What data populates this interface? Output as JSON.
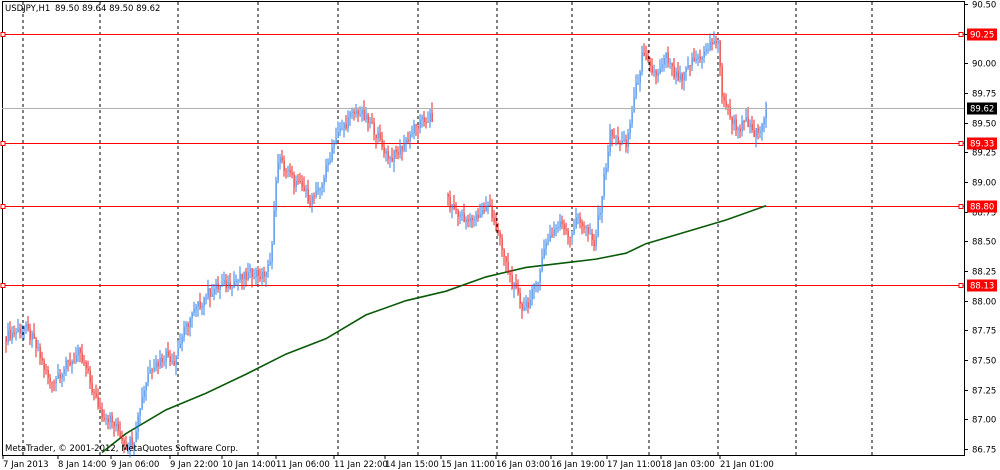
{
  "header": {
    "symbol": "USDJPY,H1",
    "ohlc": "89.50 89.64 89.50 89.62"
  },
  "copyright": "MetaTrader, © 2001-2012, MetaQuotes Software Corp.",
  "colors": {
    "background": "#ffffff",
    "up_candle": "#2f7fe8",
    "down_candle": "#e82020",
    "moving_average": "#0a5a0a",
    "level_line": "#ff0000",
    "grid": "#000000",
    "bid_line": "#b0b0b0"
  },
  "chart_data": {
    "type": "candlestick",
    "symbol": "USDJPY",
    "timeframe": "H1",
    "ylim": [
      86.7,
      90.5
    ],
    "yticks": [
      "90.50",
      "90.25",
      "90.00",
      "89.75",
      "89.50",
      "89.25",
      "89.00",
      "88.75",
      "88.50",
      "88.25",
      "88.00",
      "87.75",
      "87.50",
      "87.25",
      "87.00",
      "86.75"
    ],
    "xticks": [
      "7 Jan 2013",
      "8 Jan 14:00",
      "9 Jan 06:00",
      "9 Jan 22:00",
      "10 Jan 14:00",
      "11 Jan 06:00",
      "11 Jan 22:00",
      "14 Jan 15:00",
      "15 Jan 11:00",
      "16 Jan 03:00",
      "16 Jan 19:00",
      "17 Jan 11:00",
      "18 Jan 03:00",
      "21 Jan 01:00"
    ],
    "current_price": "89.62",
    "levels": [
      "90.25",
      "89.33",
      "88.80",
      "88.13"
    ],
    "price_path": [
      [
        0,
        87.7
      ],
      [
        6,
        87.75
      ],
      [
        9,
        87.78
      ],
      [
        14,
        87.65
      ],
      [
        18,
        87.48
      ],
      [
        22,
        87.3
      ],
      [
        27,
        87.4
      ],
      [
        32,
        87.48
      ],
      [
        36,
        87.55
      ],
      [
        40,
        87.42
      ],
      [
        44,
        87.2
      ],
      [
        48,
        87.05
      ],
      [
        52,
        87.0
      ],
      [
        56,
        86.9
      ],
      [
        60,
        86.78
      ],
      [
        64,
        86.85
      ],
      [
        68,
        87.2
      ],
      [
        72,
        87.45
      ],
      [
        76,
        87.48
      ],
      [
        80,
        87.55
      ],
      [
        84,
        87.5
      ],
      [
        88,
        87.7
      ],
      [
        92,
        87.85
      ],
      [
        96,
        87.95
      ],
      [
        100,
        88.05
      ],
      [
        104,
        88.1
      ],
      [
        108,
        88.12
      ],
      [
        112,
        88.15
      ],
      [
        116,
        88.18
      ],
      [
        120,
        88.2
      ],
      [
        124,
        88.25
      ],
      [
        128,
        88.2
      ],
      [
        132,
        88.3
      ],
      [
        136,
        89.2
      ],
      [
        140,
        89.1
      ],
      [
        144,
        89.0
      ],
      [
        148,
        88.95
      ],
      [
        152,
        88.85
      ],
      [
        156,
        88.9
      ],
      [
        160,
        89.1
      ],
      [
        164,
        89.35
      ],
      [
        168,
        89.45
      ],
      [
        172,
        89.55
      ],
      [
        176,
        89.6
      ],
      [
        180,
        89.52
      ],
      [
        184,
        89.45
      ],
      [
        188,
        89.3
      ],
      [
        192,
        89.2
      ],
      [
        196,
        89.25
      ],
      [
        200,
        89.35
      ],
      [
        204,
        89.45
      ],
      [
        208,
        89.5
      ],
      [
        212,
        89.55
      ],
      [
        222,
        88.8
      ],
      [
        226,
        88.75
      ],
      [
        230,
        88.65
      ],
      [
        234,
        88.7
      ],
      [
        238,
        88.75
      ],
      [
        242,
        88.8
      ],
      [
        246,
        88.55
      ],
      [
        250,
        88.3
      ],
      [
        254,
        88.1
      ],
      [
        258,
        87.95
      ],
      [
        262,
        88.0
      ],
      [
        266,
        88.2
      ],
      [
        270,
        88.5
      ],
      [
        274,
        88.6
      ],
      [
        278,
        88.65
      ],
      [
        282,
        88.55
      ],
      [
        286,
        88.7
      ],
      [
        290,
        88.6
      ],
      [
        294,
        88.45
      ],
      [
        298,
        88.9
      ],
      [
        302,
        89.4
      ],
      [
        306,
        89.35
      ],
      [
        310,
        89.3
      ],
      [
        314,
        89.7
      ],
      [
        318,
        90.05
      ],
      [
        322,
        89.95
      ],
      [
        326,
        89.9
      ],
      [
        330,
        90.05
      ],
      [
        334,
        89.9
      ],
      [
        338,
        89.85
      ],
      [
        342,
        90.0
      ],
      [
        346,
        90.05
      ],
      [
        350,
        90.1
      ],
      [
        354,
        90.2
      ],
      [
        356,
        90.15
      ],
      [
        358,
        89.75
      ],
      [
        362,
        89.55
      ],
      [
        366,
        89.45
      ],
      [
        370,
        89.5
      ],
      [
        374,
        89.4
      ],
      [
        378,
        89.45
      ],
      [
        380,
        89.62
      ]
    ],
    "moving_average": [
      [
        48,
        86.72
      ],
      [
        60,
        86.88
      ],
      [
        80,
        87.08
      ],
      [
        100,
        87.22
      ],
      [
        120,
        87.38
      ],
      [
        140,
        87.55
      ],
      [
        160,
        87.68
      ],
      [
        180,
        87.88
      ],
      [
        200,
        88.0
      ],
      [
        220,
        88.08
      ],
      [
        240,
        88.2
      ],
      [
        260,
        88.28
      ],
      [
        280,
        88.32
      ],
      [
        295,
        88.35
      ],
      [
        310,
        88.4
      ],
      [
        320,
        88.48
      ],
      [
        340,
        88.58
      ],
      [
        360,
        88.68
      ],
      [
        380,
        88.8
      ]
    ]
  }
}
